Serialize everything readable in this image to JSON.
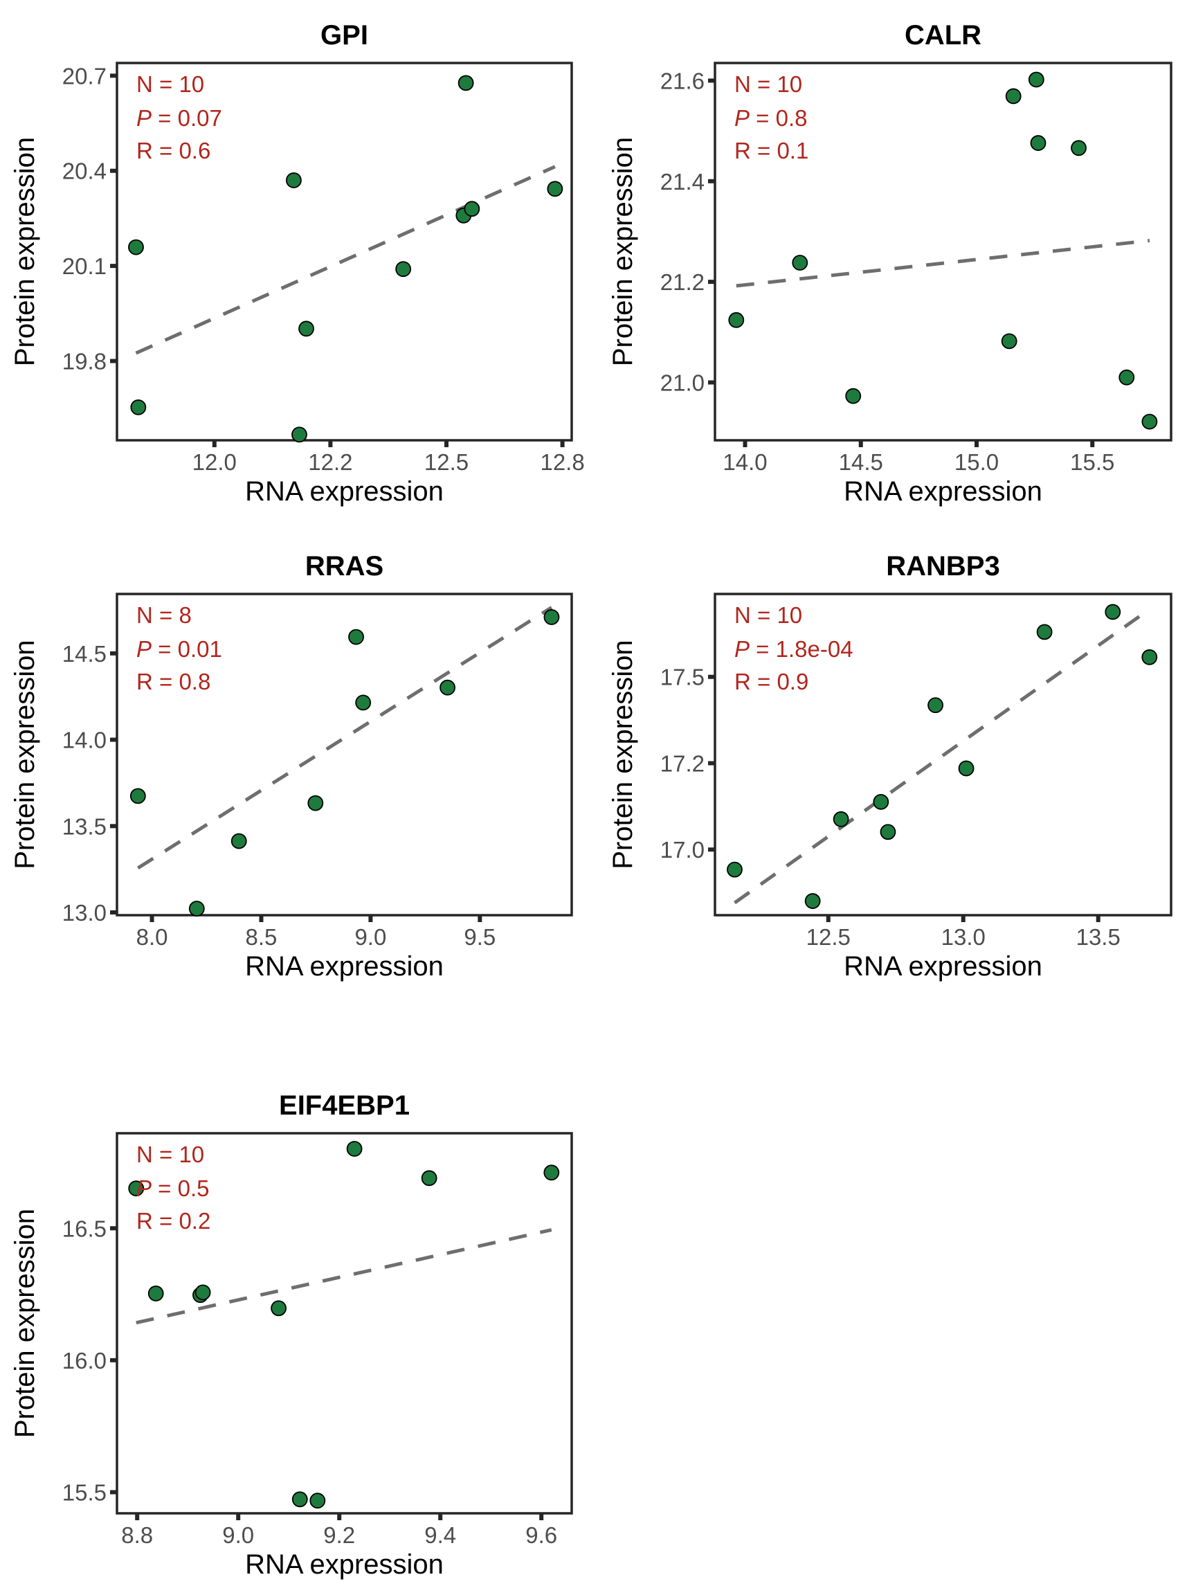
{
  "figure": {
    "point_fill": "#1e7b3e",
    "point_stroke": "#000000",
    "line_color": "#6e6e6e",
    "annotation_color": "#b2251c",
    "tick_label_color": "#4d4d4d"
  },
  "chart_data": [
    {
      "type": "scatter",
      "title": "GPI",
      "xlabel": "RNA expression",
      "ylabel": "Protein expression",
      "xlim": [
        11.79,
        12.77
      ],
      "ylim": [
        19.55,
        20.74
      ],
      "x_ticks": [
        12.0,
        12.25,
        12.5,
        12.75
      ],
      "x_tick_labels": [
        "12.0",
        "12.2",
        "12.5",
        "12.8"
      ],
      "y_ticks": [
        19.8,
        20.1,
        20.4,
        20.7
      ],
      "y_tick_labels": [
        "19.8",
        "20.1",
        "20.4",
        "20.7"
      ],
      "annotation": {
        "n_label": "N = 10",
        "p_symbol": "P",
        "p_value": " = 0.07",
        "r_label": "R = 0.6"
      },
      "points": [
        {
          "x": 11.831,
          "y": 20.159
        },
        {
          "x": 11.836,
          "y": 19.654
        },
        {
          "x": 12.171,
          "y": 20.37
        },
        {
          "x": 12.183,
          "y": 19.568
        },
        {
          "x": 12.198,
          "y": 19.902
        },
        {
          "x": 12.407,
          "y": 20.09
        },
        {
          "x": 12.537,
          "y": 20.259
        },
        {
          "x": 12.555,
          "y": 20.28
        },
        {
          "x": 12.542,
          "y": 20.677
        },
        {
          "x": 12.734,
          "y": 20.343
        }
      ],
      "fit_line": {
        "x": [
          11.831,
          12.734
        ],
        "y": [
          19.825,
          20.413
        ]
      },
      "grid": false
    },
    {
      "type": "scatter",
      "title": "CALR",
      "xlabel": "RNA expression",
      "ylabel": "Protein expression",
      "xlim": [
        13.87,
        15.84
      ],
      "ylim": [
        20.885,
        21.635
      ],
      "x_ticks": [
        14.0,
        14.5,
        15.0,
        15.5
      ],
      "x_tick_labels": [
        "14.0",
        "14.5",
        "15.0",
        "15.5"
      ],
      "y_ticks": [
        21.0,
        21.2,
        21.4,
        21.6
      ],
      "y_tick_labels": [
        "21.0",
        "21.2",
        "21.4",
        "21.6"
      ],
      "annotation": {
        "n_label": "N = 10",
        "p_symbol": "P",
        "p_value": " = 0.8",
        "r_label": "R = 0.1"
      },
      "points": [
        {
          "x": 13.962,
          "y": 21.124
        },
        {
          "x": 14.237,
          "y": 21.238
        },
        {
          "x": 14.467,
          "y": 20.973
        },
        {
          "x": 15.141,
          "y": 21.082
        },
        {
          "x": 15.159,
          "y": 21.569
        },
        {
          "x": 15.258,
          "y": 21.602
        },
        {
          "x": 15.266,
          "y": 21.476
        },
        {
          "x": 15.441,
          "y": 21.466
        },
        {
          "x": 15.648,
          "y": 21.01
        },
        {
          "x": 15.747,
          "y": 20.922
        }
      ],
      "fit_line": {
        "x": [
          13.962,
          15.747
        ],
        "y": [
          21.192,
          21.282
        ]
      },
      "grid": false
    },
    {
      "type": "scatter",
      "title": "RRAS",
      "xlabel": "RNA expression",
      "ylabel": "Protein expression",
      "xlim": [
        7.84,
        9.92
      ],
      "ylim": [
        12.984,
        14.844
      ],
      "x_ticks": [
        8.0,
        8.5,
        9.0,
        9.5
      ],
      "x_tick_labels": [
        "8.0",
        "8.5",
        "9.0",
        "9.5"
      ],
      "y_ticks": [
        13.0,
        13.5,
        14.0,
        14.5
      ],
      "y_tick_labels": [
        "13.0",
        "13.5",
        "14.0",
        "14.5"
      ],
      "annotation": {
        "n_label": "N = 8",
        "p_symbol": "P",
        "p_value": " = 0.01",
        "r_label": "R = 0.8"
      },
      "points": [
        {
          "x": 7.936,
          "y": 13.674
        },
        {
          "x": 8.205,
          "y": 13.022
        },
        {
          "x": 8.398,
          "y": 13.413
        },
        {
          "x": 8.748,
          "y": 13.633
        },
        {
          "x": 8.934,
          "y": 14.595
        },
        {
          "x": 8.966,
          "y": 14.215
        },
        {
          "x": 9.352,
          "y": 14.302
        },
        {
          "x": 9.828,
          "y": 14.71
        }
      ],
      "fit_line": {
        "x": [
          7.936,
          9.828
        ],
        "y": [
          13.257,
          14.766
        ]
      },
      "grid": false
    },
    {
      "type": "scatter",
      "title": "RANBP3",
      "xlabel": "RNA expression",
      "ylabel": "Protein expression",
      "xlim": [
        12.08,
        13.77
      ],
      "ylim": [
        16.81,
        17.74
      ],
      "x_ticks": [
        12.5,
        13.0,
        13.5
      ],
      "x_tick_labels": [
        "12.5",
        "13.0",
        "13.5"
      ],
      "y_ticks": [
        17.0,
        17.25,
        17.5
      ],
      "y_tick_labels": [
        "17.0",
        "17.2",
        "17.5"
      ],
      "annotation": {
        "n_label": "N = 10",
        "p_symbol": "P",
        "p_value": " = 1.8e-04",
        "r_label": "R = 0.9"
      },
      "points": [
        {
          "x": 12.153,
          "y": 16.942
        },
        {
          "x": 12.442,
          "y": 16.851
        },
        {
          "x": 12.547,
          "y": 17.088
        },
        {
          "x": 12.695,
          "y": 17.138
        },
        {
          "x": 12.721,
          "y": 17.051
        },
        {
          "x": 12.897,
          "y": 17.418
        },
        {
          "x": 13.011,
          "y": 17.235
        },
        {
          "x": 13.301,
          "y": 17.63
        },
        {
          "x": 13.554,
          "y": 17.688
        },
        {
          "x": 13.69,
          "y": 17.557
        }
      ],
      "fit_line": {
        "x": [
          12.153,
          13.687
        ],
        "y": [
          16.846,
          17.694
        ]
      },
      "grid": false
    },
    {
      "type": "scatter",
      "title": "EIF4EBP1",
      "xlabel": "RNA expression",
      "ylabel": "Protein expression",
      "xlim": [
        8.76,
        9.66
      ],
      "ylim": [
        15.42,
        16.86
      ],
      "x_ticks": [
        8.8,
        9.0,
        9.2,
        9.4,
        9.6
      ],
      "x_tick_labels": [
        "8.8",
        "9.0",
        "9.2",
        "9.4",
        "9.6"
      ],
      "y_ticks": [
        15.5,
        16.0,
        16.5
      ],
      "y_tick_labels": [
        "15.5",
        "16.0",
        "16.5"
      ],
      "annotation": {
        "n_label": "N = 10",
        "p_symbol": "P",
        "p_value": " = 0.5",
        "r_label": "R = 0.2"
      },
      "points": [
        {
          "x": 8.798,
          "y": 16.651
        },
        {
          "x": 8.837,
          "y": 16.253
        },
        {
          "x": 8.925,
          "y": 16.247
        },
        {
          "x": 8.93,
          "y": 16.257
        },
        {
          "x": 9.08,
          "y": 16.197
        },
        {
          "x": 9.23,
          "y": 16.801
        },
        {
          "x": 9.378,
          "y": 16.69
        },
        {
          "x": 9.62,
          "y": 16.711
        },
        {
          "x": 9.122,
          "y": 15.473
        },
        {
          "x": 9.157,
          "y": 15.468
        }
      ],
      "fit_line": {
        "x": [
          8.798,
          9.62
        ],
        "y": [
          16.142,
          16.494
        ]
      },
      "grid": false
    }
  ]
}
